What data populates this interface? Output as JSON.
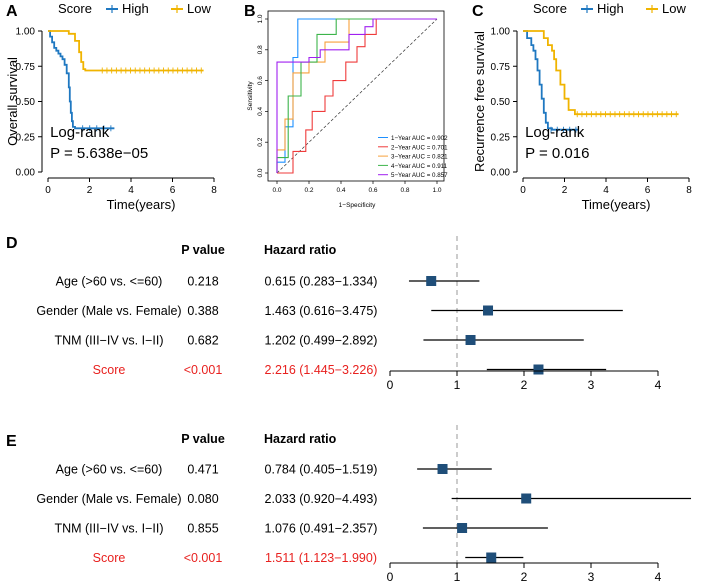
{
  "colors": {
    "high": "#1f78c1",
    "low": "#f0b400",
    "axis": "#000000",
    "highlight": "#e8211f",
    "box": "#1f4e79",
    "refline": "#999999",
    "roc_1": "#1e90ff",
    "roc_2": "#ef3b3b",
    "roc_3": "#f7a13c",
    "roc_4": "#3cb44b",
    "roc_5": "#a020f0"
  },
  "chart_data": [
    {
      "id": "A",
      "panel_label": "A",
      "type": "line",
      "subtype": "kaplan-meier",
      "legend_title": "Score",
      "legend": [
        "High",
        "Low"
      ],
      "xlabel": "Time(years)",
      "ylabel": "Overall survival",
      "xlim": [
        0,
        8
      ],
      "ylim": [
        0,
        1
      ],
      "xticks": [
        "0",
        "2",
        "4",
        "6",
        "8"
      ],
      "yticks": [
        "0.00",
        "0.25",
        "0.50",
        "0.75",
        "1.00"
      ],
      "test_label": "Log-rank",
      "p_text": "P = 5.638e−05",
      "series": [
        {
          "name": "High",
          "x": [
            0,
            0.1,
            0.2,
            0.3,
            0.4,
            0.5,
            0.6,
            0.7,
            0.8,
            0.9,
            1.0,
            1.05,
            1.1,
            1.15,
            1.2,
            1.3,
            1.5,
            2.0,
            2.5,
            3.2
          ],
          "y": [
            1,
            0.96,
            0.92,
            0.88,
            0.86,
            0.84,
            0.82,
            0.8,
            0.76,
            0.7,
            0.6,
            0.5,
            0.42,
            0.36,
            0.32,
            0.31,
            0.31,
            0.31,
            0.31,
            0.31
          ]
        },
        {
          "name": "Low",
          "x": [
            0,
            0.8,
            1.0,
            1.3,
            1.5,
            1.6,
            1.7,
            1.8,
            2.5,
            4,
            6,
            7.5
          ],
          "y": [
            1,
            1,
            0.98,
            0.93,
            0.85,
            0.78,
            0.73,
            0.72,
            0.72,
            0.72,
            0.72,
            0.72
          ]
        }
      ]
    },
    {
      "id": "B",
      "panel_label": "B",
      "type": "line",
      "subtype": "roc",
      "xlabel": "1−Specificity",
      "ylabel": "Sensitivity",
      "xlim": [
        0,
        1
      ],
      "ylim": [
        0,
        1
      ],
      "xticks": [
        "0.0",
        "0.2",
        "0.4",
        "0.6",
        "0.8",
        "1.0"
      ],
      "yticks": [
        "0.0",
        "0.2",
        "0.4",
        "0.6",
        "0.8",
        "1.0"
      ],
      "legend": [
        "1−Year AUC = 0.902",
        "2−Year AUC = 0.701",
        "3−Year AUC = 0.821",
        "4−Year AUC = 0.911",
        "5−Year AUC = 0.857"
      ],
      "series": [
        {
          "name": "1-Year",
          "x": [
            0,
            0,
            0.05,
            0.05,
            0.1,
            0.1,
            0.13,
            0.13,
            0.5,
            1
          ],
          "y": [
            0,
            0.07,
            0.07,
            0.3,
            0.3,
            0.75,
            0.75,
            1,
            1,
            1
          ]
        },
        {
          "name": "2-Year",
          "x": [
            0,
            0.1,
            0.1,
            0.18,
            0.18,
            0.22,
            0.22,
            0.3,
            0.3,
            0.35,
            0.35,
            0.43,
            0.43,
            0.5,
            0.5,
            0.55,
            0.55,
            0.62,
            0.62,
            1
          ],
          "y": [
            0,
            0,
            0.14,
            0.14,
            0.28,
            0.28,
            0.4,
            0.4,
            0.5,
            0.5,
            0.6,
            0.6,
            0.72,
            0.72,
            0.82,
            0.82,
            0.9,
            0.9,
            1,
            1
          ]
        },
        {
          "name": "3-Year",
          "x": [
            0,
            0,
            0.05,
            0.05,
            0.1,
            0.1,
            0.2,
            0.2,
            0.3,
            0.3,
            0.45,
            0.45,
            0.6,
            1
          ],
          "y": [
            0,
            0.15,
            0.15,
            0.35,
            0.35,
            0.65,
            0.65,
            0.72,
            0.72,
            0.85,
            0.85,
            1,
            1,
            1
          ]
        },
        {
          "name": "4-Year",
          "x": [
            0,
            0,
            0.07,
            0.07,
            0.15,
            0.15,
            0.25,
            0.25,
            0.37,
            0.37,
            0.5,
            1
          ],
          "y": [
            0,
            0.1,
            0.1,
            0.5,
            0.5,
            0.72,
            0.72,
            0.9,
            0.9,
            1,
            1,
            1
          ]
        },
        {
          "name": "5-Year",
          "x": [
            0,
            0,
            0.2,
            0.2,
            0.27,
            0.27,
            0.45,
            0.45,
            0.55,
            0.55,
            0.6,
            0.6,
            1
          ],
          "y": [
            0,
            0.72,
            0.72,
            0.75,
            0.75,
            0.8,
            0.8,
            0.9,
            0.9,
            0.95,
            0.95,
            1,
            1
          ]
        }
      ]
    },
    {
      "id": "C",
      "panel_label": "C",
      "type": "line",
      "subtype": "kaplan-meier",
      "legend_title": "Score",
      "legend": [
        "High",
        "Low"
      ],
      "xlabel": "Time(years)",
      "ylabel": "Recurrence free survival",
      "xlim": [
        0,
        8
      ],
      "ylim": [
        0,
        1
      ],
      "xticks": [
        "0",
        "2",
        "4",
        "6",
        "8"
      ],
      "yticks": [
        "0.00",
        "0.25",
        "0.50",
        "0.75",
        "1.00"
      ],
      "test_label": "Log-rank",
      "p_text": "P = 0.016",
      "series": [
        {
          "name": "High",
          "x": [
            0,
            0.2,
            0.4,
            0.5,
            0.6,
            0.7,
            0.8,
            0.9,
            1.0,
            1.1,
            1.2,
            1.4,
            2.0,
            2.7
          ],
          "y": [
            1,
            0.95,
            0.9,
            0.86,
            0.8,
            0.72,
            0.62,
            0.52,
            0.42,
            0.35,
            0.31,
            0.3,
            0.3,
            0.3
          ]
        },
        {
          "name": "Low",
          "x": [
            0,
            0.8,
            1.0,
            1.2,
            1.4,
            1.5,
            1.6,
            1.8,
            2.0,
            2.2,
            2.5,
            4,
            6,
            7.5
          ],
          "y": [
            1,
            1,
            0.95,
            0.9,
            0.86,
            0.8,
            0.72,
            0.62,
            0.52,
            0.44,
            0.41,
            0.41,
            0.41,
            0.41
          ]
        }
      ]
    },
    {
      "id": "D",
      "panel_label": "D",
      "type": "forest",
      "col_pvalue": "P value",
      "col_hr": "Hazard ratio",
      "xlim": [
        0,
        4
      ],
      "xticks": [
        "0",
        "1",
        "2",
        "3",
        "4"
      ],
      "refline": 1,
      "rows": [
        {
          "label": "Age (>60 vs. <=60)",
          "p": "0.218",
          "hr_text": "0.615 (0.283−1.334)",
          "hr": 0.615,
          "lo": 0.283,
          "hi": 1.334,
          "highlight": false
        },
        {
          "label": "Gender (Male vs. Female)",
          "p": "0.388",
          "hr_text": "1.463 (0.616−3.475)",
          "hr": 1.463,
          "lo": 0.616,
          "hi": 3.475,
          "highlight": false
        },
        {
          "label": "TNM (III−IV vs. I−II)",
          "p": "0.682",
          "hr_text": "1.202 (0.499−2.892)",
          "hr": 1.202,
          "lo": 0.499,
          "hi": 2.892,
          "highlight": false
        },
        {
          "label": "Score",
          "p": "<0.001",
          "hr_text": "2.216 (1.445−3.226)",
          "hr": 2.216,
          "lo": 1.445,
          "hi": 3.226,
          "highlight": true
        }
      ]
    },
    {
      "id": "E",
      "panel_label": "E",
      "type": "forest",
      "col_pvalue": "P value",
      "col_hr": "Hazard ratio",
      "xlim": [
        0,
        4
      ],
      "xticks": [
        "0",
        "1",
        "2",
        "3",
        "4"
      ],
      "refline": 1,
      "rows": [
        {
          "label": "Age (>60 vs. <=60)",
          "p": "0.471",
          "hr_text": "0.784 (0.405−1.519)",
          "hr": 0.784,
          "lo": 0.405,
          "hi": 1.519,
          "highlight": false
        },
        {
          "label": "Gender (Male vs. Female)",
          "p": "0.080",
          "hr_text": "2.033 (0.920−4.493)",
          "hr": 2.033,
          "lo": 0.92,
          "hi": 4.493,
          "highlight": false
        },
        {
          "label": "TNM (III−IV vs. I−II)",
          "p": "0.855",
          "hr_text": "1.076 (0.491−2.357)",
          "hr": 1.076,
          "lo": 0.491,
          "hi": 2.357,
          "highlight": false
        },
        {
          "label": "Score",
          "p": "<0.001",
          "hr_text": "1.511 (1.123−1.990)",
          "hr": 1.511,
          "lo": 1.123,
          "hi": 1.99,
          "highlight": true
        }
      ]
    }
  ]
}
